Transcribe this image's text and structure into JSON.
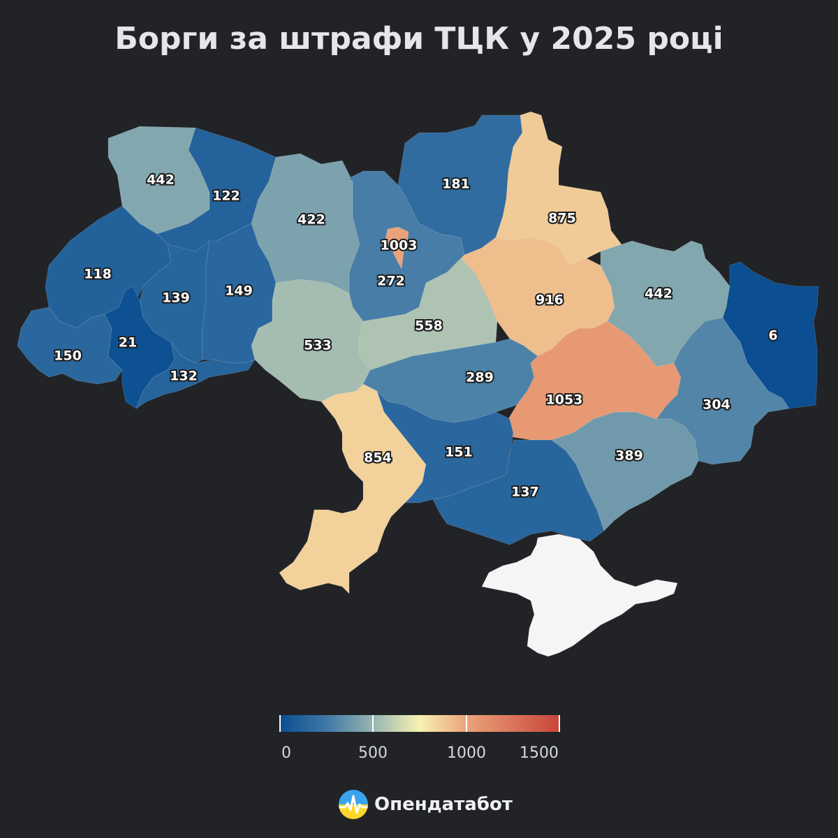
{
  "title": "Борги за штрафи ТЦК у 2025 році",
  "map": {
    "unit_note": "",
    "regions": [
      {
        "id": "volynska",
        "value": 442
      },
      {
        "id": "rivnenska",
        "value": 122
      },
      {
        "id": "zhytomyrska",
        "value": 422
      },
      {
        "id": "kyivska",
        "value": 272
      },
      {
        "id": "kyiv-city",
        "value": 1003
      },
      {
        "id": "chernihivska",
        "value": 181
      },
      {
        "id": "sumska",
        "value": 875
      },
      {
        "id": "lvivska",
        "value": 118
      },
      {
        "id": "ternopilska",
        "value": 139
      },
      {
        "id": "khmelnytska",
        "value": 149
      },
      {
        "id": "vinnytska",
        "value": 533
      },
      {
        "id": "cherkaska",
        "value": 558
      },
      {
        "id": "poltavska",
        "value": 916
      },
      {
        "id": "kharkivska",
        "value": 442
      },
      {
        "id": "luhanska",
        "value": 6
      },
      {
        "id": "zakarpatska",
        "value": 150
      },
      {
        "id": "ivano-frankivska",
        "value": 21
      },
      {
        "id": "chernivetska",
        "value": 132
      },
      {
        "id": "kirovohradska",
        "value": 289
      },
      {
        "id": "dnipropetrovska",
        "value": 1053
      },
      {
        "id": "donetska",
        "value": 304
      },
      {
        "id": "odeska",
        "value": 854
      },
      {
        "id": "mykolaivska",
        "value": 151
      },
      {
        "id": "khersonska",
        "value": 137
      },
      {
        "id": "zaporizka",
        "value": 389
      },
      {
        "id": "crimea",
        "value": null
      }
    ],
    "no_data_color": "#f5f5f5",
    "scale": {
      "min": 0,
      "max": 1500,
      "stops": [
        {
          "value": 0,
          "color": "#0a4d91"
        },
        {
          "value": 250,
          "color": "#3f78a6"
        },
        {
          "value": 500,
          "color": "#98b5b1"
        },
        {
          "value": 750,
          "color": "#f7f2b3"
        },
        {
          "value": 1000,
          "color": "#eba37a"
        },
        {
          "value": 1500,
          "color": "#c8453a"
        }
      ]
    }
  },
  "legend": {
    "tick_labels": [
      "0",
      "500",
      "1000",
      "1500"
    ],
    "tick_values": [
      0,
      500,
      1000,
      1500
    ]
  },
  "brand": {
    "name": "Опендатабот",
    "logo_icon": "opendatabot-logo-icon"
  },
  "colors": {
    "background": "#212327",
    "title": "#e5e6e8",
    "label_text": "#ffffff",
    "label_stroke": "#1b1b1b"
  }
}
